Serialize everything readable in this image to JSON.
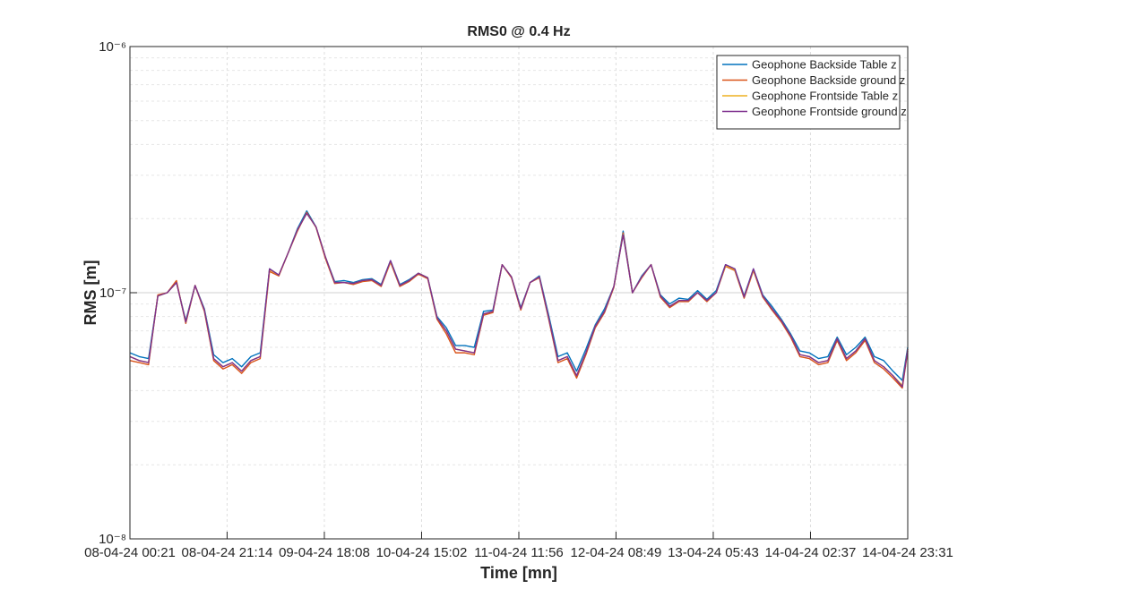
{
  "chart_data": {
    "type": "line",
    "title": "RMS0 @ 0.4 Hz",
    "xlabel": "Time [mn]",
    "ylabel": "RMS [m]",
    "yscale": "log",
    "grid": true,
    "legend": "upper right",
    "ylim": [
      1e-08,
      1e-06
    ],
    "yticks": [
      {
        "value": 1e-08,
        "label": "10⁻⁸"
      },
      {
        "value": 1e-07,
        "label": "10⁻⁷"
      },
      {
        "value": 1e-06,
        "label": "10⁻⁶"
      }
    ],
    "yminorticks": [
      2e-08,
      3e-08,
      4e-08,
      5e-08,
      6e-08,
      7e-08,
      8e-08,
      9e-08,
      2e-07,
      3e-07,
      4e-07,
      5e-07,
      6e-07,
      7e-07,
      8e-07,
      9e-07
    ],
    "xlim": [
      "08-04-24 00:21",
      "14-04-24 23:31"
    ],
    "xticks": [
      "08-04-24 00:21",
      "08-04-24 21:14",
      "09-04-24 18:08",
      "10-04-24 15:02",
      "11-04-24 11:56",
      "12-04-24 08:49",
      "13-04-24 05:43",
      "14-04-24 02:37",
      "14-04-24 23:31"
    ],
    "x": [
      "08-04-24 00:21",
      "08-04-24 02:21",
      "08-04-24 04:21",
      "08-04-24 06:21",
      "08-04-24 08:21",
      "08-04-24 10:21",
      "08-04-24 12:21",
      "08-04-24 14:21",
      "08-04-24 16:21",
      "08-04-24 18:21",
      "08-04-24 20:21",
      "08-04-24 22:21",
      "09-04-24 00:21",
      "09-04-24 02:21",
      "09-04-24 04:21",
      "09-04-24 06:21",
      "09-04-24 08:21",
      "09-04-24 10:21",
      "09-04-24 12:21",
      "09-04-24 14:21",
      "09-04-24 16:21",
      "09-04-24 18:21",
      "09-04-24 20:21",
      "09-04-24 22:21",
      "10-04-24 00:21",
      "10-04-24 02:21",
      "10-04-24 04:21",
      "10-04-24 06:21",
      "10-04-24 08:21",
      "10-04-24 10:21",
      "10-04-24 12:21",
      "10-04-24 14:21",
      "10-04-24 16:21",
      "10-04-24 18:21",
      "10-04-24 20:21",
      "10-04-24 22:21",
      "11-04-24 00:21",
      "11-04-24 02:21",
      "11-04-24 04:21",
      "11-04-24 06:21",
      "11-04-24 08:21",
      "11-04-24 10:21",
      "11-04-24 12:21",
      "11-04-24 14:21",
      "11-04-24 16:21",
      "11-04-24 18:21",
      "11-04-24 20:21",
      "11-04-24 22:21",
      "12-04-24 00:21",
      "12-04-24 02:21",
      "12-04-24 04:21",
      "12-04-24 06:21",
      "12-04-24 08:21",
      "12-04-24 10:21",
      "12-04-24 12:21",
      "12-04-24 14:21",
      "12-04-24 16:21",
      "12-04-24 18:21",
      "12-04-24 20:21",
      "12-04-24 22:21",
      "13-04-24 00:21",
      "13-04-24 02:21",
      "13-04-24 04:21",
      "13-04-24 06:21",
      "13-04-24 08:21",
      "13-04-24 10:21",
      "13-04-24 12:21",
      "13-04-24 14:21",
      "13-04-24 16:21",
      "13-04-24 18:21",
      "13-04-24 20:21",
      "13-04-24 22:21",
      "14-04-24 00:21",
      "14-04-24 02:21",
      "14-04-24 04:21",
      "14-04-24 06:21",
      "14-04-24 08:21",
      "14-04-24 10:21",
      "14-04-24 12:21",
      "14-04-24 14:21",
      "14-04-24 16:21",
      "14-04-24 18:21",
      "14-04-24 20:21",
      "14-04-24 22:21",
      "14-04-24 23:31"
    ],
    "series": [
      {
        "name": "Geophone Backside Table z",
        "color": "#0072BD",
        "values": [
          5.7e-08,
          5.5e-08,
          5.4e-08,
          9.7e-08,
          1e-07,
          1.1e-07,
          7.7e-08,
          1.07e-07,
          8.6e-08,
          5.6e-08,
          5.2e-08,
          5.4e-08,
          5e-08,
          5.5e-08,
          5.7e-08,
          1.25e-07,
          1.18e-07,
          1.45e-07,
          1.82e-07,
          2.15e-07,
          1.85e-07,
          1.4e-07,
          1.11e-07,
          1.12e-07,
          1.1e-07,
          1.13e-07,
          1.14e-07,
          1.08e-07,
          1.35e-07,
          1.08e-07,
          1.13e-07,
          1.2e-07,
          1.15e-07,
          8e-08,
          7.2e-08,
          6.1e-08,
          6.1e-08,
          6e-08,
          8.4e-08,
          8.5e-08,
          1.3e-07,
          1.16e-07,
          8.7e-08,
          1.1e-07,
          1.17e-07,
          8.1e-08,
          5.5e-08,
          5.7e-08,
          4.8e-08,
          5.9e-08,
          7.4e-08,
          8.6e-08,
          1.06e-07,
          1.78e-07,
          1e-07,
          1.17e-07,
          1.3e-07,
          9.8e-08,
          9e-08,
          9.5e-08,
          9.4e-08,
          1.02e-07,
          9.4e-08,
          1.02e-07,
          1.3e-07,
          1.25e-07,
          9.7e-08,
          1.25e-07,
          9.8e-08,
          8.8e-08,
          7.8e-08,
          6.8e-08,
          5.8e-08,
          5.7e-08,
          5.4e-08,
          5.5e-08,
          6.6e-08,
          5.6e-08,
          6e-08,
          6.6e-08,
          5.5e-08,
          5.3e-08,
          4.8e-08,
          4.4e-08,
          6e-08
        ]
      },
      {
        "name": "Geophone Backside ground z",
        "color": "#D95319",
        "values": [
          5.3e-08,
          5.2e-08,
          5.1e-08,
          9.8e-08,
          1e-07,
          1.12e-07,
          7.5e-08,
          1.07e-07,
          8.4e-08,
          5.3e-08,
          4.9e-08,
          5.1e-08,
          4.7e-08,
          5.2e-08,
          5.4e-08,
          1.22e-07,
          1.17e-07,
          1.45e-07,
          1.78e-07,
          2.12e-07,
          1.84e-07,
          1.38e-07,
          1.09e-07,
          1.1e-07,
          1.08e-07,
          1.11e-07,
          1.12e-07,
          1.06e-07,
          1.33e-07,
          1.06e-07,
          1.11e-07,
          1.19e-07,
          1.14e-07,
          7.8e-08,
          6.8e-08,
          5.7e-08,
          5.7e-08,
          5.6e-08,
          8.1e-08,
          8.3e-08,
          1.3e-07,
          1.15e-07,
          8.5e-08,
          1.1e-07,
          1.15e-07,
          7.8e-08,
          5.2e-08,
          5.4e-08,
          4.5e-08,
          5.6e-08,
          7.2e-08,
          8.3e-08,
          1.05e-07,
          1.75e-07,
          1e-07,
          1.15e-07,
          1.3e-07,
          9.6e-08,
          8.7e-08,
          9.2e-08,
          9.2e-08,
          1e-07,
          9.2e-08,
          1e-07,
          1.28e-07,
          1.23e-07,
          9.5e-08,
          1.23e-07,
          9.6e-08,
          8.5e-08,
          7.6e-08,
          6.6e-08,
          5.5e-08,
          5.4e-08,
          5.1e-08,
          5.2e-08,
          6.4e-08,
          5.3e-08,
          5.7e-08,
          6.4e-08,
          5.2e-08,
          4.9e-08,
          4.5e-08,
          4.1e-08,
          5.8e-08
        ]
      },
      {
        "name": "Geophone Frontside Table z",
        "color": "#EDB120",
        "values": [
          5.5e-08,
          5.3e-08,
          5.2e-08,
          9.7e-08,
          1e-07,
          1.1e-07,
          7.6e-08,
          1.07e-07,
          8.5e-08,
          5.4e-08,
          5e-08,
          5.2e-08,
          4.8e-08,
          5.3e-08,
          5.5e-08,
          1.24e-07,
          1.18e-07,
          1.45e-07,
          1.8e-07,
          2.1e-07,
          1.85e-07,
          1.4e-07,
          1.1e-07,
          1.1e-07,
          1.09e-07,
          1.12e-07,
          1.13e-07,
          1.07e-07,
          1.34e-07,
          1.07e-07,
          1.12e-07,
          1.2e-07,
          1.15e-07,
          7.9e-08,
          7e-08,
          5.9e-08,
          5.8e-08,
          5.7e-08,
          8.2e-08,
          8.4e-08,
          1.3e-07,
          1.16e-07,
          8.6e-08,
          1.1e-07,
          1.16e-07,
          7.9e-08,
          5.3e-08,
          5.5e-08,
          4.6e-08,
          5.7e-08,
          7.3e-08,
          8.4e-08,
          1.06e-07,
          1.73e-07,
          1e-07,
          1.16e-07,
          1.3e-07,
          9.7e-08,
          8.8e-08,
          9.3e-08,
          9.3e-08,
          1e-07,
          9.3e-08,
          1e-07,
          1.29e-07,
          1.24e-07,
          9.6e-08,
          1.24e-07,
          9.7e-08,
          8.6e-08,
          7.7e-08,
          6.7e-08,
          5.6e-08,
          5.5e-08,
          5.2e-08,
          5.3e-08,
          6.5e-08,
          5.4e-08,
          5.8e-08,
          6.5e-08,
          5.3e-08,
          5e-08,
          4.6e-08,
          4.2e-08,
          5.9e-08
        ]
      },
      {
        "name": "Geophone Frontside ground z",
        "color": "#7E2F8E",
        "values": [
          5.5e-08,
          5.3e-08,
          5.2e-08,
          9.7e-08,
          1e-07,
          1.1e-07,
          7.6e-08,
          1.07e-07,
          8.5e-08,
          5.4e-08,
          5e-08,
          5.2e-08,
          4.8e-08,
          5.3e-08,
          5.5e-08,
          1.25e-07,
          1.18e-07,
          1.45e-07,
          1.8e-07,
          2.1e-07,
          1.85e-07,
          1.4e-07,
          1.1e-07,
          1.1e-07,
          1.09e-07,
          1.12e-07,
          1.13e-07,
          1.07e-07,
          1.35e-07,
          1.07e-07,
          1.12e-07,
          1.2e-07,
          1.15e-07,
          7.9e-08,
          7e-08,
          5.9e-08,
          5.8e-08,
          5.7e-08,
          8.2e-08,
          8.4e-08,
          1.3e-07,
          1.16e-07,
          8.6e-08,
          1.1e-07,
          1.16e-07,
          7.9e-08,
          5.3e-08,
          5.5e-08,
          4.6e-08,
          5.7e-08,
          7.3e-08,
          8.4e-08,
          1.06e-07,
          1.72e-07,
          1e-07,
          1.16e-07,
          1.3e-07,
          9.7e-08,
          8.8e-08,
          9.3e-08,
          9.3e-08,
          1e-07,
          9.3e-08,
          1e-07,
          1.3e-07,
          1.25e-07,
          9.6e-08,
          1.25e-07,
          9.7e-08,
          8.6e-08,
          7.7e-08,
          6.7e-08,
          5.6e-08,
          5.5e-08,
          5.2e-08,
          5.3e-08,
          6.5e-08,
          5.4e-08,
          5.8e-08,
          6.5e-08,
          5.3e-08,
          5e-08,
          4.6e-08,
          4.15e-08,
          5.9e-08
        ]
      }
    ]
  }
}
